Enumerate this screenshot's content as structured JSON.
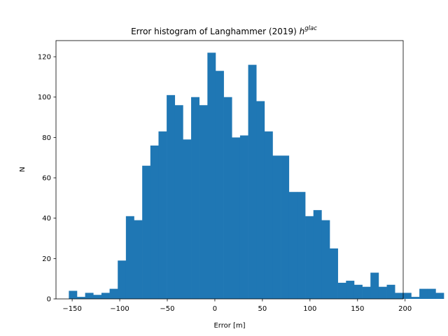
{
  "chart_data": {
    "type": "bar",
    "title": "Error histogram of Langhammer (2019) ",
    "title_math_base": "h",
    "title_math_sup": "glac",
    "xlabel": "Error [m]",
    "ylabel": "N",
    "xlim": [
      -167,
      198
    ],
    "ylim": [
      0,
      128
    ],
    "xticks": [
      -150,
      -100,
      -50,
      0,
      50,
      100,
      150,
      200
    ],
    "xtick_labels": [
      "−150",
      "−100",
      "−50",
      "0",
      "50",
      "100",
      "150",
      "200"
    ],
    "yticks": [
      0,
      20,
      40,
      60,
      80,
      100,
      120
    ],
    "ytick_labels": [
      "0",
      "20",
      "40",
      "60",
      "80",
      "100",
      "120"
    ],
    "grid": false,
    "bar_color": "#1f77b4",
    "bin_start": -153.5,
    "bin_width": 8.57,
    "values": [
      4,
      1,
      3,
      2,
      3,
      5,
      19,
      41,
      39,
      66,
      76,
      83,
      101,
      96,
      79,
      100,
      96,
      122,
      113,
      100,
      80,
      81,
      116,
      98,
      83,
      71,
      71,
      53,
      53,
      41,
      44,
      39,
      25,
      8,
      9,
      7,
      6,
      13,
      6,
      7,
      3,
      3,
      1,
      5,
      5,
      3
    ]
  }
}
